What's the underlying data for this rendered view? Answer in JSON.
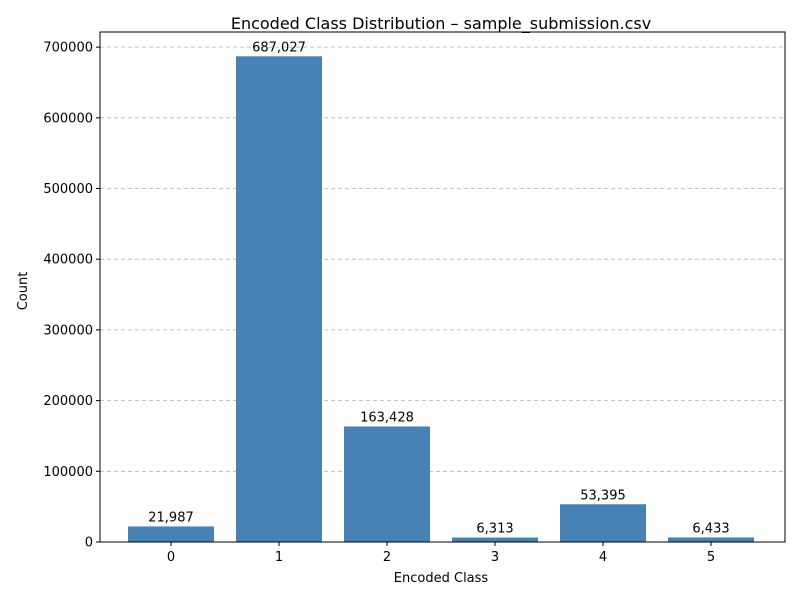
{
  "chart_data": {
    "type": "bar",
    "title": "Encoded Class Distribution – sample_submission.csv",
    "xlabel": "Encoded Class",
    "ylabel": "Count",
    "categories": [
      "0",
      "1",
      "2",
      "3",
      "4",
      "5"
    ],
    "values": [
      21987,
      687027,
      163428,
      6313,
      53395,
      6433
    ],
    "data_labels": [
      "21,987",
      "687,027",
      "163,428",
      "6,313",
      "53,395",
      "6,433"
    ],
    "ylim": [
      0,
      721378
    ],
    "yticks": [
      0,
      100000,
      200000,
      300000,
      400000,
      500000,
      600000,
      700000
    ],
    "ytick_labels": [
      "0",
      "100000",
      "200000",
      "300000",
      "400000",
      "500000",
      "600000",
      "700000"
    ],
    "grid": "y-dashed",
    "bar_color": "#4682b4"
  }
}
